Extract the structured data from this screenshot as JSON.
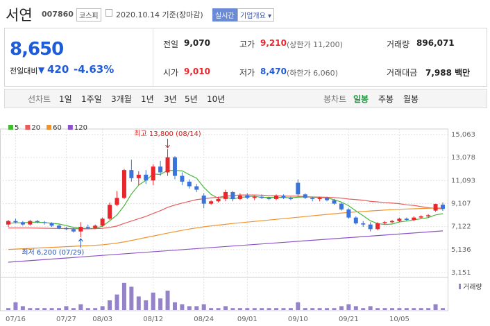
{
  "header": {
    "title": "서연",
    "code": "007860",
    "market": "코스피",
    "date": "2020.10.14 기준(장마감)",
    "realtime": "실시간",
    "company_info": "기업개요"
  },
  "price": {
    "current": "8,650",
    "change_label": "전일대비",
    "change": "420",
    "change_pct": "-4.63%"
  },
  "stats": [
    {
      "label": "전일",
      "value": "9,070"
    },
    {
      "label": "고가",
      "value": "9,210",
      "note": "(상한가 11,200)"
    },
    {
      "label": "거래량",
      "value": "896,071"
    },
    {
      "label": "시가",
      "value": "9,010"
    },
    {
      "label": "저가",
      "value": "8,470",
      "note": "(하한가 6,060)"
    },
    {
      "label": "거래대금",
      "value": "7,988 백만"
    }
  ],
  "tabs": {
    "line": {
      "label": "선차트",
      "items": [
        "1일",
        "1주일",
        "3개월",
        "1년",
        "3년",
        "5년",
        "10년"
      ]
    },
    "candle": {
      "label": "봉차트",
      "items": [
        "일봉",
        "주봉",
        "월봉"
      ]
    }
  },
  "chart_data": {
    "type": "candlestick",
    "categories": [
      null,
      "07/16",
      null,
      null,
      null,
      null,
      null,
      null,
      "07/27",
      null,
      null,
      null,
      null,
      "08/03",
      null,
      null,
      null,
      null,
      null,
      null,
      "08/12",
      null,
      null,
      null,
      null,
      null,
      null,
      "08/24",
      null,
      null,
      null,
      null,
      null,
      "09/01",
      null,
      null,
      null,
      null,
      null,
      null,
      "09/10",
      null,
      null,
      null,
      null,
      null,
      null,
      "09/21",
      null,
      null,
      null,
      null,
      null,
      null,
      "10/05",
      null,
      null,
      null,
      null,
      null,
      null
    ],
    "open": [
      7300,
      7600,
      7500,
      7300,
      7600,
      7500,
      7400,
      7200,
      7000,
      6900,
      6700,
      7100,
      7000,
      7200,
      7800,
      9000,
      9600,
      12000,
      11300,
      11600,
      11100,
      12300,
      11800,
      13100,
      11500,
      11000,
      10600,
      9800,
      9100,
      9300,
      9500,
      10100,
      9500,
      9800,
      9600,
      9700,
      9600,
      9500,
      9800,
      9600,
      10900,
      9900,
      9600,
      9500,
      9600,
      9400,
      9100,
      8600,
      7900,
      7400,
      7300,
      6900,
      7400,
      7500,
      7600,
      7800,
      7700,
      7900,
      8000,
      8500,
      9010
    ],
    "high": [
      7700,
      7800,
      7600,
      7700,
      7700,
      7600,
      7500,
      7300,
      7100,
      7000,
      7500,
      7300,
      7300,
      7900,
      9200,
      10200,
      12100,
      12900,
      11900,
      12000,
      12500,
      12800,
      13800,
      13200,
      11800,
      11200,
      10800,
      10000,
      9400,
      9700,
      10300,
      10200,
      10000,
      10000,
      9800,
      9900,
      9700,
      9900,
      9900,
      9700,
      11200,
      10000,
      9700,
      9700,
      9700,
      9500,
      9200,
      8700,
      8000,
      7600,
      7500,
      7500,
      7600,
      7700,
      7900,
      7900,
      8000,
      8100,
      8200,
      9100,
      9210
    ],
    "low": [
      7100,
      7400,
      7200,
      7200,
      7400,
      7300,
      7100,
      6900,
      6800,
      6600,
      6200,
      6900,
      6900,
      7100,
      7700,
      8900,
      9500,
      11000,
      10700,
      10800,
      10700,
      11500,
      11500,
      11200,
      10700,
      10400,
      10100,
      8700,
      9000,
      9200,
      9300,
      9300,
      9400,
      9500,
      9400,
      9500,
      9400,
      9400,
      9500,
      9400,
      9700,
      9500,
      9300,
      9300,
      9300,
      9000,
      8500,
      7800,
      7300,
      7100,
      6700,
      6800,
      7300,
      7400,
      7500,
      7600,
      7600,
      7800,
      7900,
      8400,
      8470
    ],
    "close": [
      7600,
      7500,
      7300,
      7600,
      7500,
      7450,
      7200,
      7000,
      6900,
      6700,
      7100,
      7000,
      7200,
      7800,
      9000,
      9600,
      12000,
      11300,
      11600,
      11100,
      12300,
      11800,
      13100,
      11500,
      11000,
      10600,
      10300,
      9100,
      9300,
      9500,
      10100,
      9500,
      9800,
      9600,
      9700,
      9600,
      9500,
      9800,
      9600,
      9500,
      9900,
      9600,
      9500,
      9600,
      9400,
      9100,
      8600,
      7900,
      7400,
      7300,
      6900,
      7400,
      7500,
      7600,
      7800,
      7700,
      7900,
      8000,
      8100,
      9070,
      8650
    ],
    "up_color": "#e8262b",
    "down_color": "#3a73d9",
    "series": [
      {
        "name": "5",
        "color": "#47b738",
        "values": [
          7400,
          7450,
          7450,
          7500,
          7500,
          7470,
          7410,
          7350,
          7210,
          7050,
          6980,
          6940,
          6980,
          7160,
          7620,
          8120,
          8920,
          9940,
          10700,
          11120,
          11660,
          11620,
          11980,
          11960,
          11940,
          11600,
          11300,
          10500,
          9900,
          9560,
          9660,
          9500,
          9640,
          9700,
          9740,
          9640,
          9640,
          9640,
          9640,
          9600,
          9660,
          9680,
          9660,
          9620,
          9600,
          9440,
          9240,
          8920,
          8480,
          8060,
          7620,
          7380,
          7300,
          7340,
          7520,
          7600,
          7700,
          7800,
          7900,
          8130,
          8240
        ]
      },
      {
        "name": "20",
        "color": "#e85c5c",
        "values": [
          7000,
          7000,
          7000,
          7000,
          6990,
          6980,
          6970,
          6960,
          6950,
          6940,
          6930,
          6930,
          6940,
          6970,
          7050,
          7170,
          7400,
          7600,
          7800,
          8000,
          8250,
          8500,
          8780,
          8980,
          9150,
          9300,
          9450,
          9520,
          9600,
          9650,
          9750,
          9800,
          9850,
          9850,
          9850,
          9830,
          9800,
          9780,
          9760,
          9750,
          9750,
          9700,
          9680,
          9670,
          9650,
          9620,
          9580,
          9500,
          9450,
          9400,
          9300,
          9250,
          9200,
          9150,
          9100,
          9000,
          8950,
          8850,
          8750,
          8700,
          8650
        ]
      },
      {
        "name": "60",
        "color": "#f0932b",
        "values": [
          5150,
          5180,
          5210,
          5240,
          5270,
          5300,
          5330,
          5360,
          5390,
          5420,
          5450,
          5480,
          5510,
          5550,
          5620,
          5700,
          5800,
          5920,
          6050,
          6180,
          6300,
          6430,
          6560,
          6680,
          6800,
          6910,
          7010,
          7100,
          7180,
          7250,
          7320,
          7390,
          7450,
          7510,
          7570,
          7630,
          7690,
          7750,
          7810,
          7870,
          7930,
          7990,
          8050,
          8110,
          8170,
          8230,
          8290,
          8340,
          8390,
          8430,
          8470,
          8510,
          8550,
          8580,
          8610,
          8640,
          8660,
          8680,
          8700,
          8720,
          8740
        ]
      },
      {
        "name": "120",
        "color": "#8e52c8",
        "values": [
          4050,
          4095,
          4140,
          4185,
          4230,
          4275,
          4320,
          4365,
          4410,
          4455,
          4500,
          4545,
          4590,
          4635,
          4680,
          4725,
          4770,
          4815,
          4860,
          4905,
          4950,
          4995,
          5040,
          5085,
          5130,
          5175,
          5220,
          5265,
          5310,
          5355,
          5400,
          5445,
          5490,
          5535,
          5580,
          5625,
          5670,
          5715,
          5760,
          5805,
          5850,
          5895,
          5940,
          5985,
          6030,
          6075,
          6120,
          6165,
          6210,
          6255,
          6300,
          6345,
          6390,
          6435,
          6480,
          6525,
          6570,
          6615,
          6660,
          6705,
          6750
        ]
      }
    ],
    "ylim": [
      3151,
      15063
    ],
    "yticks": [
      {
        "value": 3151,
        "label": "3,151"
      },
      {
        "value": 5136,
        "label": "5,136"
      },
      {
        "value": 7122,
        "label": "7,122"
      },
      {
        "value": 9107,
        "label": "9,107"
      },
      {
        "value": 11093,
        "label": "11,093"
      },
      {
        "value": 13078,
        "label": "13,078"
      },
      {
        "value": 15063,
        "label": "15,063"
      }
    ],
    "grid": true,
    "max_label": "최고 13,800 (08/14)",
    "min_label": "최저 6,200 (07/29)",
    "volume": {
      "name": "거래량",
      "color": "#9583c9",
      "ylim": [
        0,
        15
      ],
      "values": [
        1,
        4,
        2,
        1,
        1,
        1,
        1,
        1,
        2,
        1,
        3,
        1,
        1,
        2,
        5,
        8,
        14,
        12,
        7,
        5,
        9,
        6,
        10,
        4,
        3,
        2,
        2,
        3,
        1,
        1,
        2,
        1,
        1,
        1,
        1,
        1,
        1,
        1,
        1,
        1,
        4,
        1,
        1,
        1,
        1,
        1,
        2,
        3,
        2,
        1,
        2,
        1,
        1,
        1,
        1,
        1,
        1,
        1,
        1,
        3,
        1
      ]
    }
  }
}
